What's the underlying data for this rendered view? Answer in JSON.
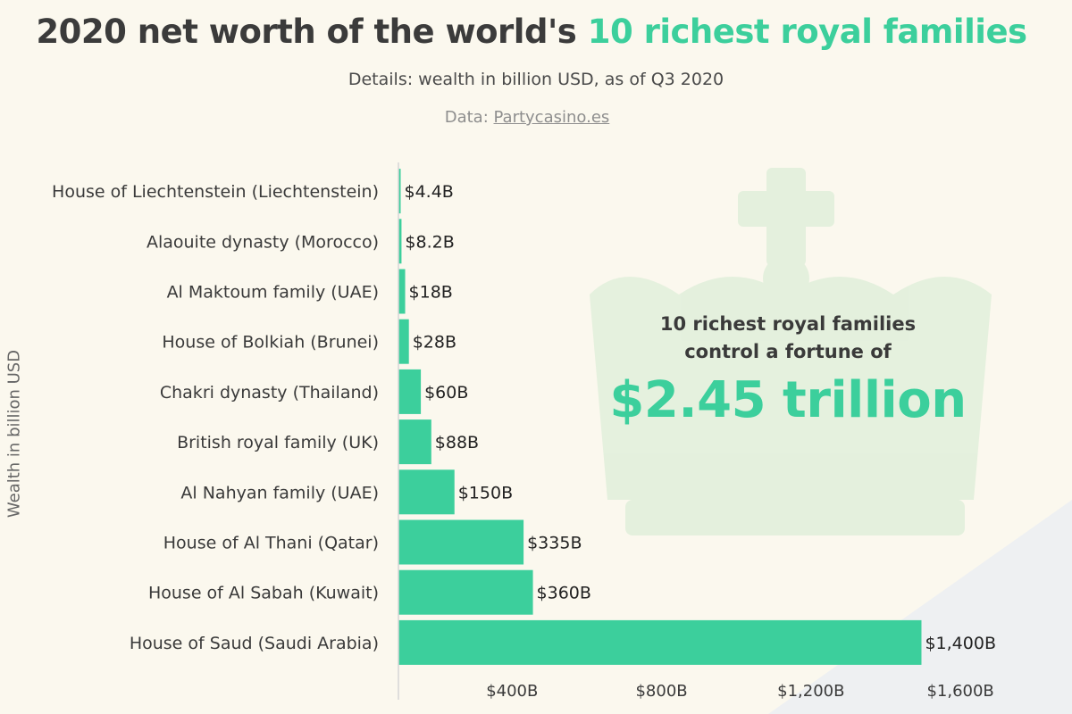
{
  "title": {
    "part1": "2020 net worth of the world's",
    "part2": "10 richest royal families"
  },
  "subtitle": "Details: wealth in billion USD, as of Q3 2020",
  "source": {
    "prefix": "Data:",
    "link_text": "Partycasino.es"
  },
  "callout": {
    "line1": "10 richest royal families",
    "line2": "control a fortune of",
    "big": "$2.45 trillion"
  },
  "chart_data": {
    "type": "bar",
    "orientation": "horizontal",
    "ylabel": "Wealth in billion USD",
    "categories": [
      "House of Liechtenstein (Liechtenstein)",
      "Alaouite dynasty (Morocco)",
      "Al Maktoum family (UAE)",
      "House of Bolkiah (Brunei)",
      "Chakri dynasty (Thailand)",
      "British royal family (UK)",
      "Al Nahyan family (UAE)",
      "House of Al Thani (Qatar)",
      "House of Al Sabah (Kuwait)",
      "House of Saud (Saudi Arabia)"
    ],
    "values": [
      4.4,
      8.2,
      18,
      28,
      60,
      88,
      150,
      335,
      360,
      1400
    ],
    "data_labels": [
      "$4.4B",
      "$8.2B",
      "$18B",
      "$28B",
      "$60B",
      "$88B",
      "$150B",
      "$335B",
      "$360B",
      "$1,400B"
    ],
    "xlim": [
      0,
      1600
    ],
    "xticks": [
      400,
      800,
      1200,
      1600
    ],
    "xtick_labels": [
      "$400B",
      "$800B",
      "$1,200B",
      "$1,600B"
    ],
    "grid": false,
    "bar_color": "#3ccf9c"
  }
}
